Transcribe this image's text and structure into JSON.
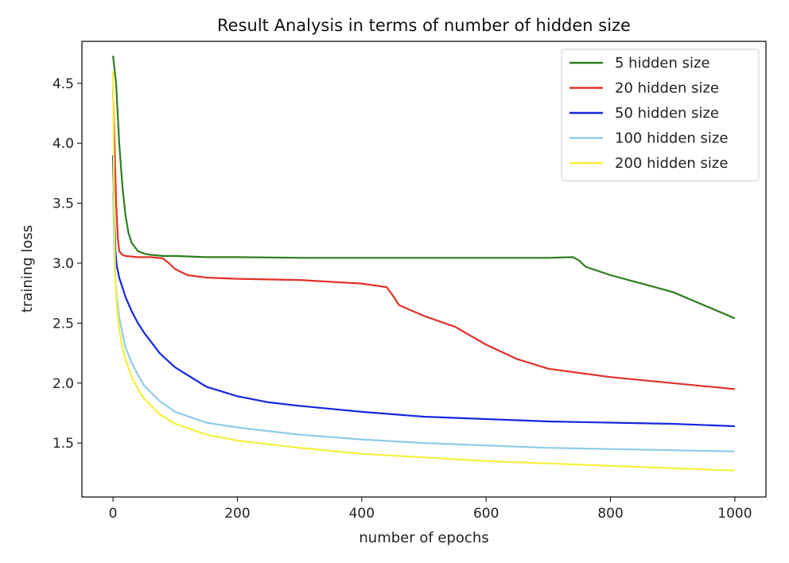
{
  "chart_data": {
    "type": "line",
    "title": "Result Analysis in terms of number of hidden size",
    "xlabel": "number of epochs",
    "ylabel": "training loss",
    "xlim": [
      -50,
      1050
    ],
    "ylim": [
      1.05,
      4.85
    ],
    "xticks": [
      0,
      200,
      400,
      600,
      800,
      1000
    ],
    "xtick_labels": [
      "0",
      "200",
      "400",
      "600",
      "800",
      "1000"
    ],
    "yticks": [
      1.5,
      2.0,
      2.5,
      3.0,
      3.5,
      4.0,
      4.5
    ],
    "ytick_labels": [
      "1.5",
      "2.0",
      "2.5",
      "3.0",
      "3.5",
      "4.0",
      "4.5"
    ],
    "grid": false,
    "legend_position": "top-right",
    "series": [
      {
        "name": "5 hidden size",
        "color": "#2e7d1f",
        "x": [
          0,
          5,
          10,
          15,
          20,
          25,
          30,
          40,
          50,
          60,
          80,
          100,
          150,
          200,
          300,
          400,
          500,
          600,
          700,
          740,
          750,
          760,
          800,
          850,
          900,
          950,
          1000
        ],
        "y": [
          4.73,
          4.5,
          4.0,
          3.65,
          3.4,
          3.25,
          3.17,
          3.1,
          3.08,
          3.07,
          3.06,
          3.06,
          3.05,
          3.05,
          3.045,
          3.045,
          3.045,
          3.045,
          3.045,
          3.05,
          3.02,
          2.97,
          2.9,
          2.83,
          2.76,
          2.65,
          2.54
        ]
      },
      {
        "name": "20 hidden size",
        "color": "#e0312a",
        "x": [
          0,
          3,
          5,
          8,
          10,
          15,
          20,
          40,
          60,
          80,
          90,
          100,
          120,
          150,
          200,
          300,
          400,
          440,
          450,
          460,
          500,
          550,
          600,
          650,
          700,
          800,
          900,
          1000
        ],
        "y": [
          4.45,
          3.9,
          3.5,
          3.2,
          3.1,
          3.07,
          3.06,
          3.05,
          3.05,
          3.04,
          3.0,
          2.95,
          2.9,
          2.88,
          2.87,
          2.86,
          2.83,
          2.8,
          2.73,
          2.65,
          2.56,
          2.47,
          2.32,
          2.2,
          2.12,
          2.05,
          2.0,
          1.95
        ]
      },
      {
        "name": "50 hidden size",
        "color": "#1428e0",
        "x": [
          0,
          2,
          4,
          6,
          10,
          15,
          20,
          30,
          40,
          50,
          75,
          100,
          150,
          200,
          250,
          300,
          400,
          500,
          600,
          700,
          800,
          900,
          1000
        ],
        "y": [
          3.9,
          3.4,
          3.1,
          2.98,
          2.88,
          2.8,
          2.72,
          2.6,
          2.5,
          2.42,
          2.25,
          2.13,
          1.97,
          1.89,
          1.84,
          1.81,
          1.76,
          1.72,
          1.7,
          1.68,
          1.67,
          1.66,
          1.64
        ]
      },
      {
        "name": "100 hidden size",
        "color": "#8ecbea",
        "x": [
          0,
          2,
          4,
          6,
          10,
          15,
          20,
          30,
          40,
          50,
          75,
          100,
          150,
          200,
          250,
          300,
          400,
          500,
          600,
          700,
          800,
          900,
          1000
        ],
        "y": [
          3.6,
          3.1,
          2.85,
          2.72,
          2.55,
          2.42,
          2.3,
          2.17,
          2.07,
          1.98,
          1.85,
          1.76,
          1.67,
          1.63,
          1.6,
          1.57,
          1.53,
          1.5,
          1.48,
          1.46,
          1.45,
          1.44,
          1.43
        ]
      },
      {
        "name": "200 hidden size",
        "color": "#f4f03c",
        "x": [
          0,
          2,
          4,
          6,
          10,
          15,
          20,
          30,
          40,
          50,
          75,
          100,
          150,
          200,
          250,
          300,
          400,
          500,
          600,
          700,
          800,
          900,
          1000
        ],
        "y": [
          4.6,
          3.3,
          2.85,
          2.65,
          2.45,
          2.3,
          2.2,
          2.05,
          1.95,
          1.87,
          1.74,
          1.66,
          1.57,
          1.52,
          1.49,
          1.46,
          1.41,
          1.38,
          1.35,
          1.33,
          1.31,
          1.29,
          1.27
        ]
      }
    ]
  }
}
